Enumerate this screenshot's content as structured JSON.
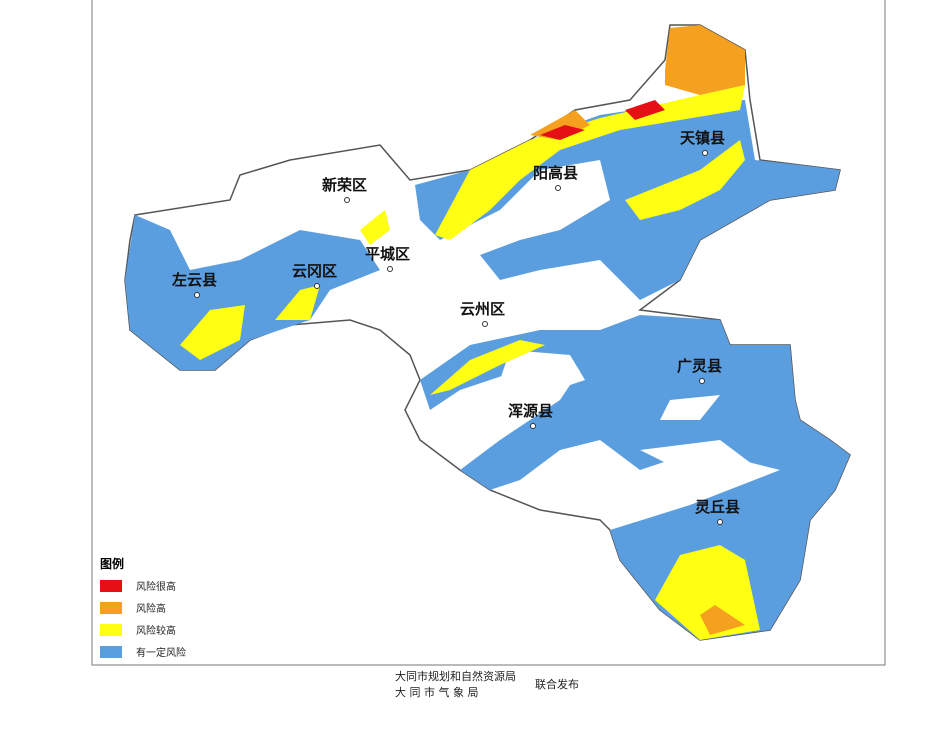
{
  "map": {
    "labels": [
      "新荣区",
      "阳高县",
      "天镇县",
      "左云县",
      "云冈区",
      "平城区",
      "云州区",
      "广灵县",
      "浑源县",
      "灵丘县"
    ]
  },
  "legend": {
    "title": "图例",
    "items": [
      {
        "label": "风险很高",
        "color": "#e60f16"
      },
      {
        "label": "风险高",
        "color": "#f5a01e"
      },
      {
        "label": "风险较高",
        "color": "#ffff14"
      },
      {
        "label": "有一定风险",
        "color": "#5b9ee0"
      }
    ]
  },
  "footer": {
    "publishers": [
      "大同市规划和自然资源局",
      "大 同 市 气 象 局"
    ],
    "joint": "联合发布"
  }
}
